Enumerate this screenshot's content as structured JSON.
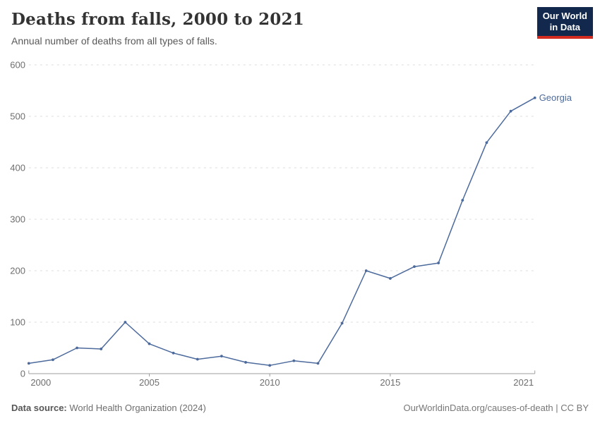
{
  "header": {
    "title": "Deaths from falls, 2000 to 2021",
    "subtitle": "Annual number of deaths from all types of falls."
  },
  "logo": {
    "line1": "Our World",
    "line2": "in Data"
  },
  "footer": {
    "source_label": "Data source:",
    "source_value": "World Health Organization (2024)",
    "attribution": "OurWorldinData.org/causes-of-death | CC BY"
  },
  "colors": {
    "series": "#4c6a9c",
    "grid": "#dcdcdc",
    "axis": "#9e9e9e",
    "tick_text": "#6e6e6e",
    "logo_bg": "#12294d",
    "logo_stripe": "#d42b21"
  },
  "chart_data": {
    "type": "line",
    "title": "Deaths from falls, 2000 to 2021",
    "subtitle": "Annual number of deaths from all types of falls.",
    "xlabel": "",
    "ylabel": "",
    "xlim": [
      2000,
      2021
    ],
    "ylim": [
      0,
      600
    ],
    "x_ticks": [
      2000,
      2005,
      2010,
      2015,
      2021
    ],
    "y_ticks": [
      0,
      100,
      200,
      300,
      400,
      500,
      600
    ],
    "grid": "horizontal-dashed",
    "legend": "line-end-label",
    "series": [
      {
        "name": "Georgia",
        "color": "#4c6a9c",
        "x": [
          2000,
          2001,
          2002,
          2003,
          2004,
          2005,
          2006,
          2007,
          2008,
          2009,
          2010,
          2011,
          2012,
          2013,
          2014,
          2015,
          2016,
          2017,
          2018,
          2019,
          2020,
          2021
        ],
        "values": [
          20,
          27,
          50,
          48,
          100,
          58,
          40,
          28,
          34,
          22,
          16,
          25,
          20,
          98,
          200,
          185,
          208,
          215,
          337,
          449,
          510,
          536
        ]
      }
    ]
  }
}
